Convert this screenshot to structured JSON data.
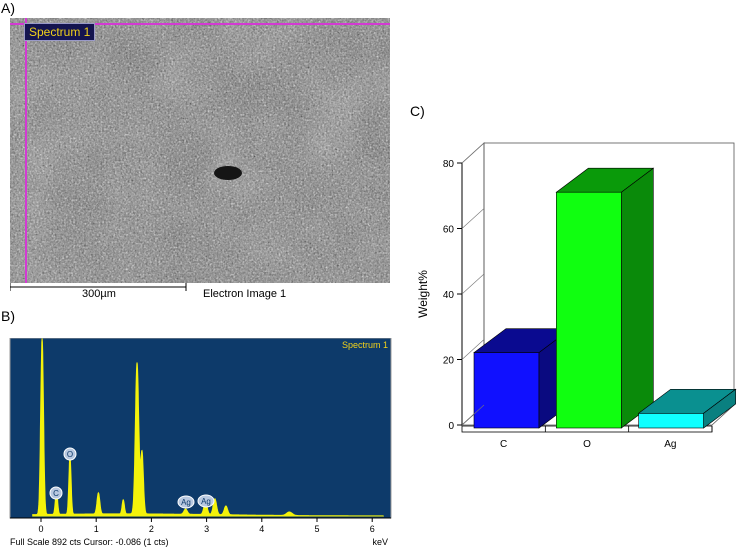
{
  "labels": {
    "a": "A)",
    "b": "B)",
    "c": "C)"
  },
  "sem": {
    "spectrum_tag": "Spectrum 1",
    "scale_bar": "300µm",
    "image_caption": "Electron Image 1"
  },
  "eds": {
    "title": "Spectrum 1",
    "status": "Full Scale 892 cts Cursor: -0.086  (1 cts)",
    "x_unit": "keV",
    "x_ticks": [
      "0",
      "1",
      "2",
      "3",
      "4",
      "5",
      "6"
    ],
    "peak_labels": [
      "C",
      "O",
      "Ag",
      "Ag"
    ],
    "colors": {
      "background": "#0d3a6a",
      "trace": "#f4f20a",
      "title": "#f2d21a"
    }
  },
  "chart_data": {
    "type": "bar",
    "categories": [
      "C",
      "O",
      "Ag"
    ],
    "values": [
      23,
      72,
      4.5
    ],
    "ylabel": "Weight%",
    "xlabel": "",
    "ylim": [
      0,
      80
    ],
    "y_ticks": [
      "0",
      "20",
      "40",
      "60",
      "80"
    ],
    "colors": [
      {
        "front": "#1010ff",
        "top": "#0a0a90",
        "side": "#0a0a80"
      },
      {
        "front": "#10ff10",
        "top": "#0a9a0a",
        "side": "#0a8a0a"
      },
      {
        "front": "#10ffff",
        "top": "#0a9090",
        "side": "#0a8080"
      }
    ]
  }
}
